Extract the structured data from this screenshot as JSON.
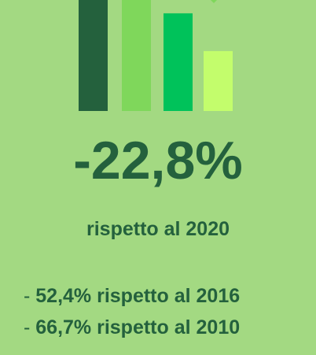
{
  "chart_data": {
    "type": "bar",
    "values": [
      1.0,
      1.0,
      0.88,
      0.54
    ],
    "colors": [
      "#24613d",
      "#7fd75b",
      "#00c25a",
      "#c3fd6c"
    ]
  },
  "headline": {
    "value": "-22,8%"
  },
  "comparison": {
    "text": "rispetto al 2020"
  },
  "list": [
    {
      "dash": "-",
      "text": " 52,4% rispetto al 2016"
    },
    {
      "dash": "-",
      "text": " 66,7% rispetto al 2010"
    }
  ]
}
